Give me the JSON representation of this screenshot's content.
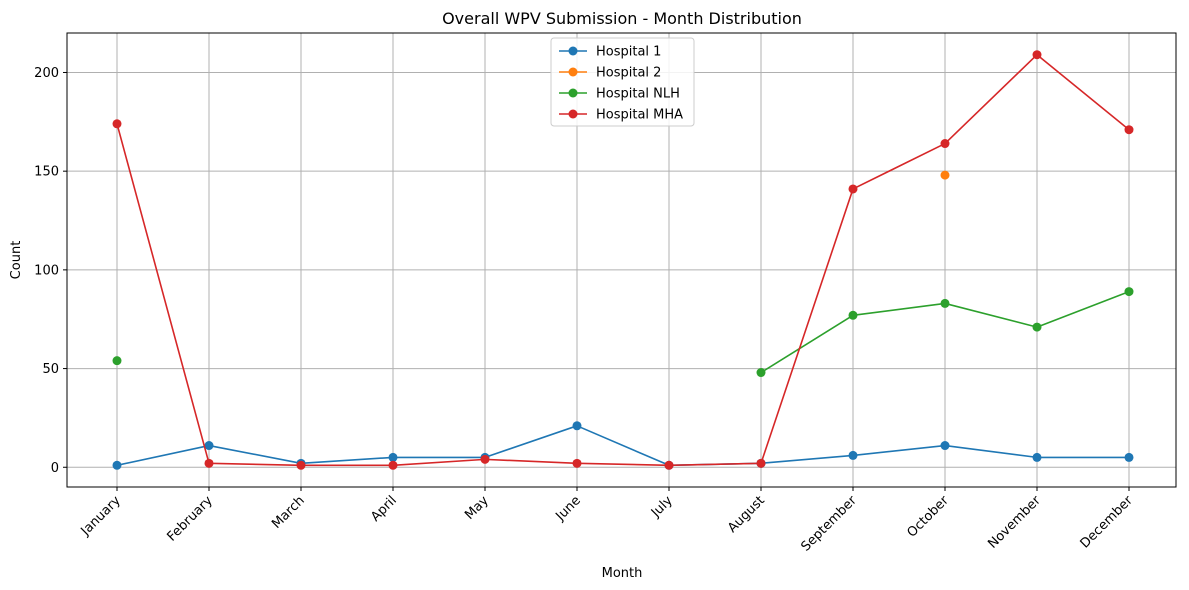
{
  "chart_data": {
    "type": "line",
    "title": "Overall WPV Submission - Month Distribution",
    "xlabel": "Month",
    "ylabel": "Count",
    "categories": [
      "January",
      "February",
      "March",
      "April",
      "May",
      "June",
      "July",
      "August",
      "September",
      "October",
      "November",
      "December"
    ],
    "ylim": [
      -10,
      220
    ],
    "yticks": [
      0,
      50,
      100,
      150,
      200
    ],
    "grid": true,
    "legend_position": "top-center",
    "series": [
      {
        "name": "Hospital 1",
        "color": "#1f77b4",
        "values": [
          1,
          11,
          2,
          5,
          5,
          21,
          1,
          2,
          6,
          11,
          5,
          5
        ]
      },
      {
        "name": "Hospital 2",
        "color": "#ff7f0e",
        "values": [
          null,
          null,
          null,
          null,
          null,
          null,
          null,
          null,
          null,
          148,
          null,
          null
        ]
      },
      {
        "name": "Hospital NLH",
        "color": "#2ca02c",
        "values": [
          54,
          null,
          null,
          null,
          null,
          null,
          null,
          48,
          77,
          83,
          71,
          89
        ]
      },
      {
        "name": "Hospital MHA",
        "color": "#d62728",
        "values": [
          174,
          2,
          1,
          1,
          4,
          2,
          1,
          2,
          141,
          164,
          209,
          171
        ]
      }
    ]
  }
}
